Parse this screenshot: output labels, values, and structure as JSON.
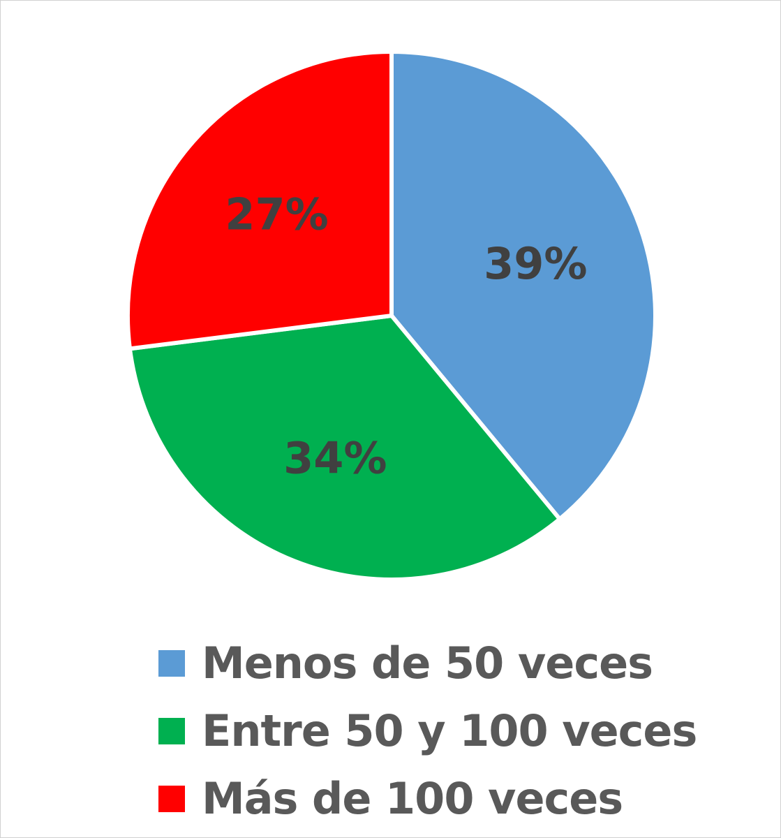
{
  "chart_data": {
    "type": "pie",
    "title": "",
    "legend_position": "bottom",
    "start_angle_deg": 0,
    "direction": "clockwise",
    "slices": [
      {
        "name": "Menos de 50 veces",
        "value": 39,
        "label": "39%",
        "color": "#5B9BD5"
      },
      {
        "name": "Entre 50 y 100 veces",
        "value": 34,
        "label": "34%",
        "color": "#00B050"
      },
      {
        "name": "Más de 100 veces",
        "value": 27,
        "label": "27%",
        "color": "#FF0000"
      }
    ]
  }
}
